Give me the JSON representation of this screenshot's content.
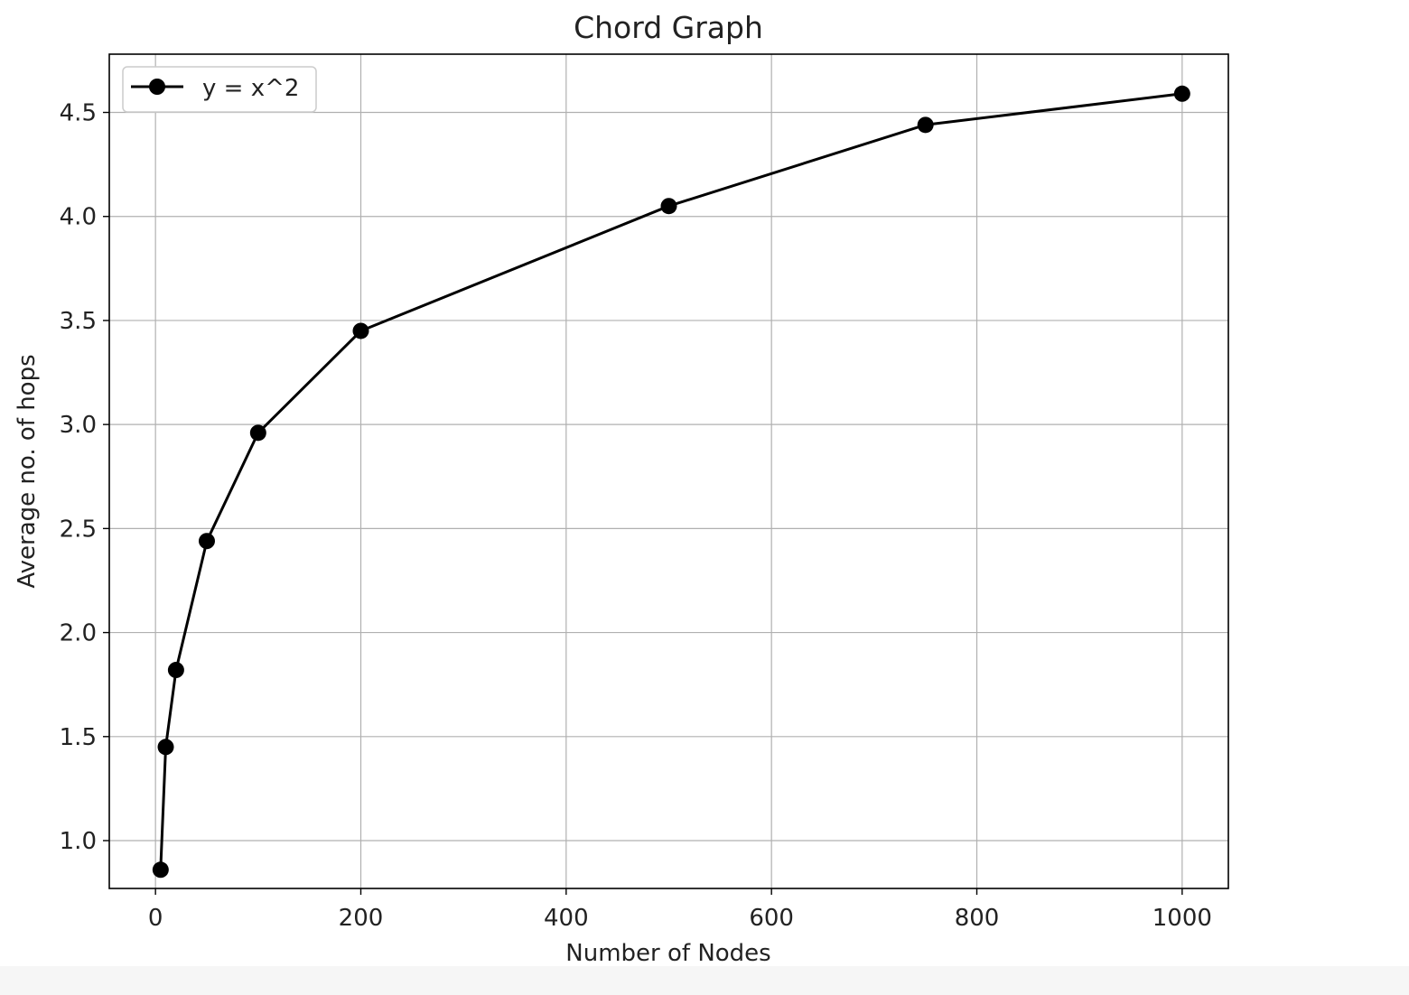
{
  "chart_data": {
    "type": "line",
    "title": "Chord Graph",
    "xlabel": "Number of Nodes",
    "ylabel": "Average no. of hops",
    "xlim": [
      -45,
      1045
    ],
    "ylim": [
      0.77,
      4.78
    ],
    "xticks": [
      0,
      200,
      400,
      600,
      800,
      1000
    ],
    "xtick_labels": [
      "0",
      "200",
      "400",
      "600",
      "800",
      "1000"
    ],
    "yticks": [
      1.0,
      1.5,
      2.0,
      2.5,
      3.0,
      3.5,
      4.0,
      4.5
    ],
    "ytick_labels": [
      "1.0",
      "1.5",
      "2.0",
      "2.5",
      "3.0",
      "3.5",
      "4.0",
      "4.5"
    ],
    "grid": true,
    "legend_position": "upper-left",
    "series": [
      {
        "name": "y = x^2",
        "color": "#000000",
        "marker": "circle",
        "x": [
          5,
          10,
          20,
          50,
          100,
          200,
          500,
          750,
          1000
        ],
        "y": [
          0.86,
          1.45,
          1.82,
          2.44,
          2.96,
          3.45,
          4.05,
          4.44,
          4.59
        ]
      }
    ]
  }
}
